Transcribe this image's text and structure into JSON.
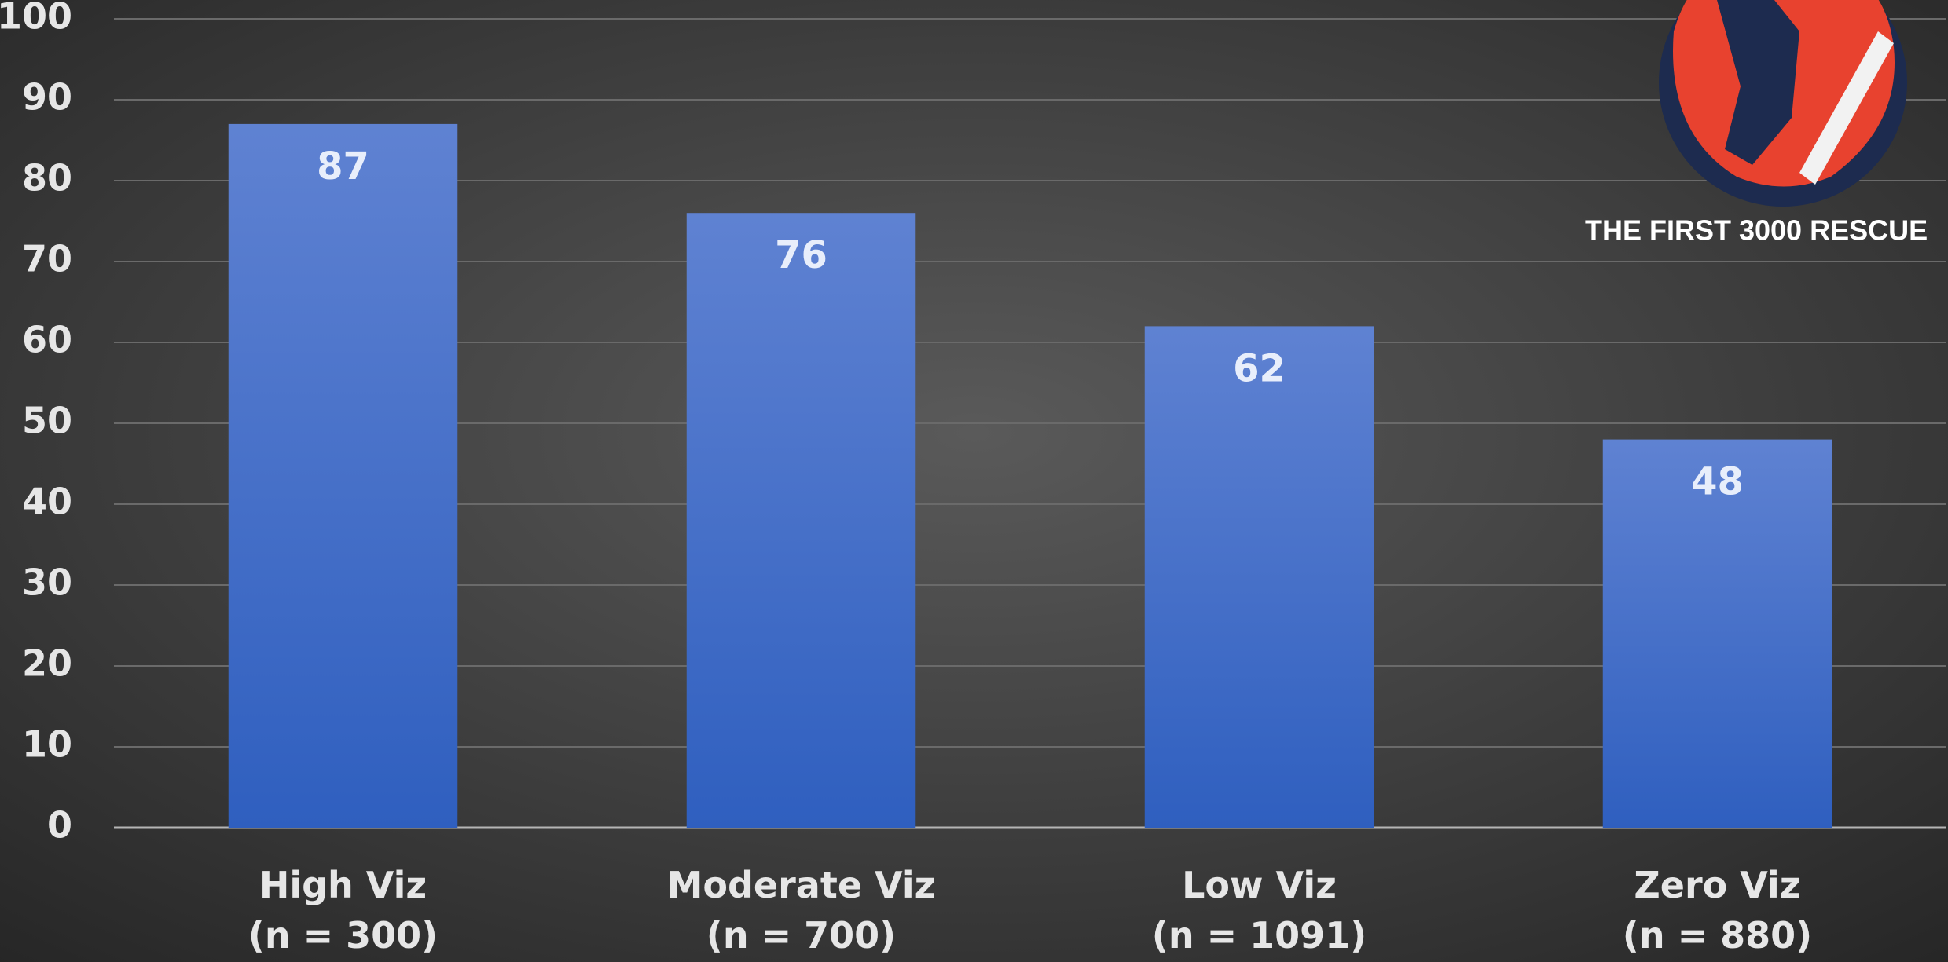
{
  "chart_data": {
    "type": "bar",
    "categories": [
      "High Viz\n(n = 300)",
      "Moderate Viz\n(n = 700)",
      "Low Viz\n(n = 1091)",
      "Zero Viz\n(n = 880)"
    ],
    "values": [
      87,
      76,
      62,
      48
    ],
    "color": "#4a72cc",
    "ylim": [
      0,
      100
    ],
    "yticks": [
      0,
      10,
      20,
      30,
      40,
      50,
      60,
      70,
      80,
      90,
      100
    ],
    "grid": true,
    "logo_text": "THE FIRST 3000 RESCUE"
  }
}
